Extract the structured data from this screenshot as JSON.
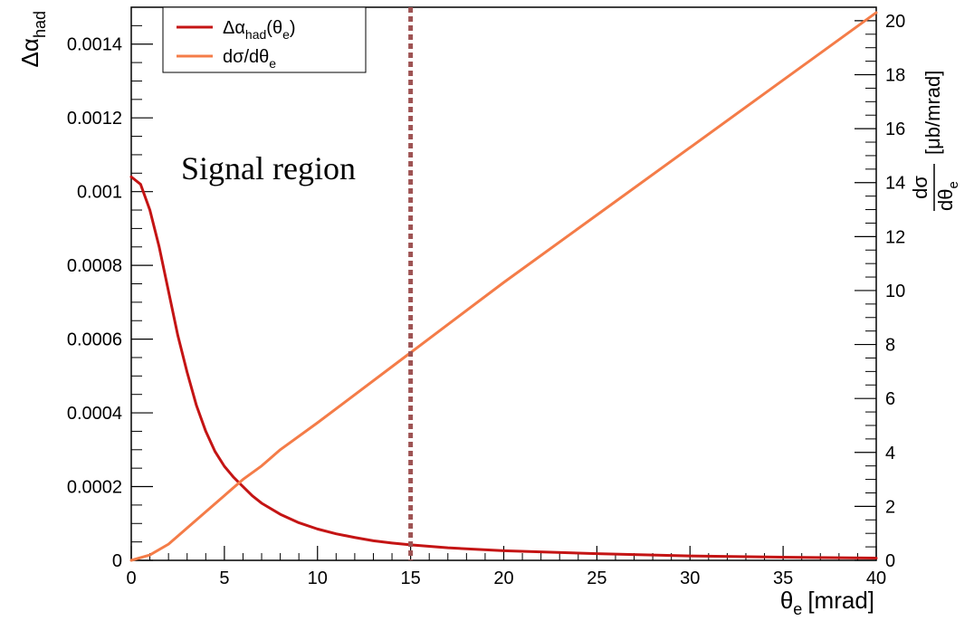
{
  "chart_data": {
    "type": "line",
    "x_axis": {
      "label": "θ",
      "label_sub": "e",
      "label_unit": "[mrad]",
      "range": [
        0,
        40
      ],
      "ticks": [
        0,
        5,
        10,
        15,
        20,
        25,
        30,
        35,
        40
      ],
      "tick_labels": [
        "0",
        "5",
        "10",
        "15",
        "20",
        "25",
        "30",
        "35",
        "40"
      ]
    },
    "y_axis_left": {
      "label": "Δα",
      "label_sub": "had",
      "range": [
        0,
        0.0015
      ],
      "ticks": [
        0,
        0.0002,
        0.0004,
        0.0006,
        0.0008,
        0.001,
        0.0012,
        0.0014
      ],
      "tick_labels": [
        "0",
        "0.0002",
        "0.0004",
        "0.0006",
        "0.0008",
        "0.001",
        "0.0012",
        "0.0014"
      ]
    },
    "y_axis_right": {
      "label_num": "dσ",
      "label_den": "dθ",
      "label_den_sub": "e",
      "label_unit": "[μb/mrad]",
      "range": [
        0,
        20.5
      ],
      "ticks": [
        0,
        2,
        4,
        6,
        8,
        10,
        12,
        14,
        16,
        18,
        20
      ],
      "tick_labels": [
        "0",
        "2",
        "4",
        "6",
        "8",
        "10",
        "12",
        "14",
        "16",
        "18",
        "20"
      ]
    },
    "series": [
      {
        "name": "Δα_had(θ_e)",
        "legend_main": "Δα",
        "legend_sub1": "had",
        "legend_mid": "(θ",
        "legend_sub2": "e",
        "legend_end": ")",
        "axis": "left",
        "color": "#c41414",
        "x": [
          0,
          0.5,
          1,
          1.5,
          2,
          2.5,
          3,
          3.5,
          4,
          4.5,
          5,
          5.5,
          6,
          6.5,
          7,
          8,
          9,
          10,
          11,
          12,
          13,
          14,
          15,
          17,
          20,
          25,
          30,
          35,
          40
        ],
        "y": [
          0.00104,
          0.00102,
          0.00095,
          0.00085,
          0.00073,
          0.00061,
          0.00051,
          0.00042,
          0.00035,
          0.000295,
          0.000255,
          0.000225,
          0.0002,
          0.000175,
          0.000155,
          0.000125,
          0.000102,
          8.5e-05,
          7.2e-05,
          6.2e-05,
          5.3e-05,
          4.7e-05,
          4.2e-05,
          3.4e-05,
          2.6e-05,
          1.8e-05,
          1.2e-05,
          8.5e-06,
          6e-06
        ]
      },
      {
        "name": "dσ/dθ_e",
        "legend_main": "dσ/dθ",
        "legend_sub1": "e",
        "axis": "right",
        "color": "#f47c48",
        "x": [
          0,
          1,
          2,
          3,
          4,
          5,
          6,
          7,
          8,
          10,
          15,
          20,
          25,
          30,
          35,
          40
        ],
        "y": [
          0,
          0.2,
          0.6,
          1.2,
          1.8,
          2.4,
          3.0,
          3.5,
          4.1,
          5.1,
          7.7,
          10.3,
          12.8,
          15.3,
          17.8,
          20.3
        ]
      }
    ],
    "annotations": [
      {
        "text": "Signal region"
      }
    ],
    "vertical_lines": [
      {
        "x": 15,
        "style": "dotted",
        "color": "#9e5353"
      }
    ],
    "legend_position": "top-left",
    "grid": false
  }
}
